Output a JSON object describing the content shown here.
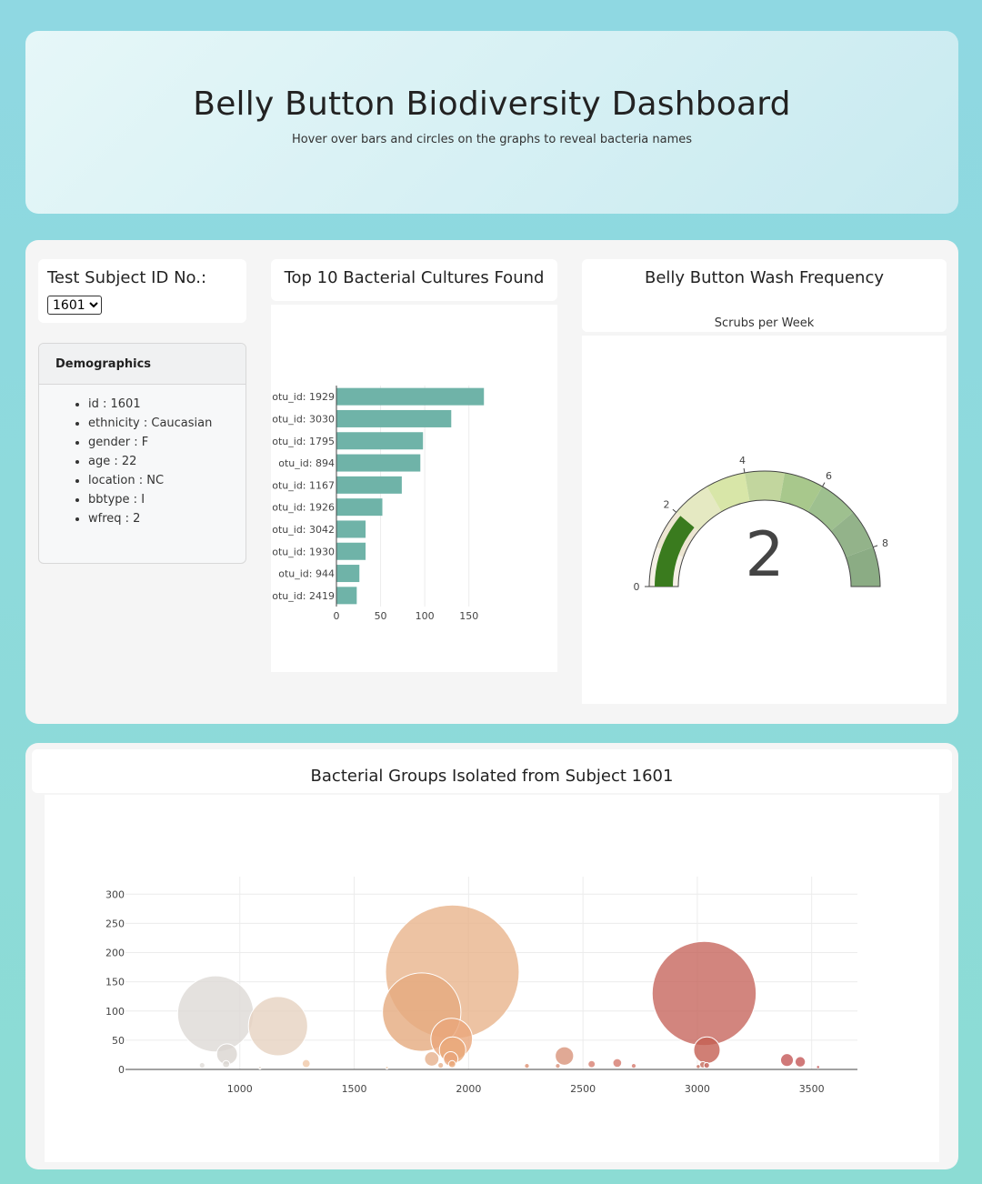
{
  "header": {
    "title": "Belly Button Biodiversity Dashboard",
    "subtitle": "Hover over bars and circles on the graphs to reveal bacteria names"
  },
  "selector": {
    "label": "Test Subject ID No.:",
    "selected": "1601"
  },
  "demographics": {
    "title": "Demographics",
    "items": [
      "id : 1601",
      "ethnicity : Caucasian",
      "gender : F",
      "age : 22",
      "location : NC",
      "bbtype : I",
      "wfreq : 2"
    ]
  },
  "bar_panel": {
    "title": "Top 10 Bacterial Cultures Found"
  },
  "gauge_panel": {
    "title": "Belly Button Wash Frequency",
    "subtitle": "Scrubs per Week"
  },
  "bubble_panel": {
    "title": "Bacterial Groups Isolated from Subject 1601"
  },
  "chart_data": [
    {
      "type": "bar",
      "orientation": "horizontal",
      "categories": [
        "otu_id: 1929",
        "otu_id: 3030",
        "otu_id: 1795",
        "otu_id: 894",
        "otu_id: 1167",
        "otu_id: 1926",
        "otu_id: 3042",
        "otu_id: 1930",
        "otu_id: 944",
        "otu_id: 2419"
      ],
      "values": [
        167,
        130,
        98,
        95,
        74,
        52,
        33,
        33,
        26,
        23
      ],
      "xticks": [
        0,
        50,
        100,
        150
      ],
      "xlim": [
        0,
        175
      ],
      "color": "#6fb3a8"
    },
    {
      "type": "gauge",
      "value": 2,
      "range": [
        0,
        9
      ],
      "ticks": [
        0,
        2,
        4,
        6,
        8
      ],
      "bar_color": "#3a7b1e",
      "step_colors": [
        "#f5f0e6",
        "#ede6d2",
        "#e5e9c2",
        "#d8e6a8",
        "#c2d69e",
        "#a8c88c",
        "#9ec08f",
        "#93b38a",
        "#8bac84"
      ]
    },
    {
      "type": "scatter",
      "mode": "bubble",
      "xticks": [
        1000,
        1500,
        2000,
        2500,
        3000,
        3500
      ],
      "yticks": [
        0,
        50,
        100,
        150,
        200,
        250,
        300
      ],
      "xlim": [
        500,
        3700
      ],
      "ylim": [
        0,
        330
      ],
      "points": [
        {
          "x": 1929,
          "y": 167,
          "color": "#e8b48c"
        },
        {
          "x": 3030,
          "y": 130,
          "color": "#c7675e"
        },
        {
          "x": 1795,
          "y": 98,
          "color": "#e5aa7e"
        },
        {
          "x": 894,
          "y": 95,
          "color": "#dddad6"
        },
        {
          "x": 1167,
          "y": 74,
          "color": "#e6d2c0"
        },
        {
          "x": 1926,
          "y": 52,
          "color": "#eaa67a"
        },
        {
          "x": 3042,
          "y": 33,
          "color": "#c45f52"
        },
        {
          "x": 1930,
          "y": 33,
          "color": "#e9a878"
        },
        {
          "x": 944,
          "y": 26,
          "color": "#d9d5d0"
        },
        {
          "x": 2419,
          "y": 23,
          "color": "#d8937a"
        },
        {
          "x": 1922,
          "y": 18,
          "color": "#e8a57a"
        },
        {
          "x": 1839,
          "y": 18,
          "color": "#e6b08c"
        },
        {
          "x": 3392,
          "y": 16,
          "color": "#c45858"
        },
        {
          "x": 3450,
          "y": 13,
          "color": "#c45858"
        },
        {
          "x": 2650,
          "y": 11,
          "color": "#d67a6e"
        },
        {
          "x": 1290,
          "y": 10,
          "color": "#f0c8a8"
        },
        {
          "x": 2538,
          "y": 9,
          "color": "#d88070"
        },
        {
          "x": 1928,
          "y": 9,
          "color": "#eaa878"
        },
        {
          "x": 940,
          "y": 9,
          "color": "#dcd8d3"
        },
        {
          "x": 3024,
          "y": 8,
          "color": "#c46a5a"
        },
        {
          "x": 835,
          "y": 7,
          "color": "#e0dcd8"
        },
        {
          "x": 3041,
          "y": 7,
          "color": "#c05a50"
        },
        {
          "x": 1878,
          "y": 7,
          "color": "#e6b08c"
        },
        {
          "x": 2722,
          "y": 6,
          "color": "#d67a6e"
        },
        {
          "x": 2390,
          "y": 6,
          "color": "#d89078"
        },
        {
          "x": 2255,
          "y": 6,
          "color": "#dd9070"
        },
        {
          "x": 3004,
          "y": 5,
          "color": "#c46a5a"
        },
        {
          "x": 3528,
          "y": 4,
          "color": "#c45858"
        },
        {
          "x": 1088,
          "y": 3,
          "color": "#e3d6c8"
        },
        {
          "x": 1643,
          "y": 3,
          "color": "#e8c4a4"
        }
      ]
    }
  ]
}
